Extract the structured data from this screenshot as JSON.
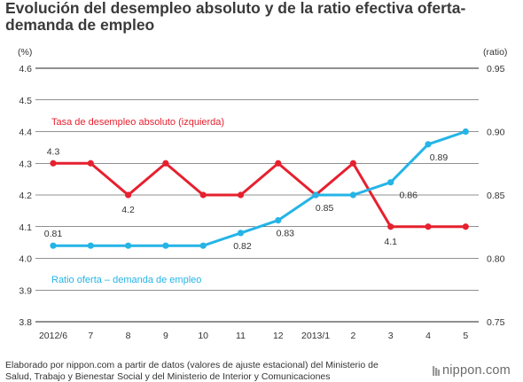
{
  "title": "Evolución del desempleo absoluto y de la ratio efectiva oferta-demanda de empleo",
  "source": "Elaborado por nippon.com a partir de datos (valores de ajuste estacional) del Ministerio de Salud, Trabajo y Bienestar Social y del Ministerio de Interior y Comunicaciones",
  "brand": "nippon.com",
  "colors": {
    "unemployment": "#e6202e",
    "ratio": "#25b4e6",
    "grid": "#222222",
    "text": "#333333"
  },
  "chart_data": {
    "type": "line",
    "categories": [
      "2012/6",
      "7",
      "8",
      "9",
      "10",
      "11",
      "12",
      "2013/1",
      "2",
      "3",
      "4",
      "5"
    ],
    "left_axis": {
      "label": "(%)",
      "ylim": [
        3.8,
        4.6
      ],
      "ticks": [
        "3.8",
        "3.9",
        "4.0",
        "4.1",
        "4.2",
        "4.3",
        "4.4",
        "4.5",
        "4.6"
      ]
    },
    "right_axis": {
      "label": "(ratio)",
      "ylim": [
        0.75,
        0.95
      ],
      "ticks": [
        "0.75",
        "0.80",
        "0.85",
        "0.90",
        "0.95"
      ]
    },
    "grid": true,
    "series": [
      {
        "name": "Tasa de desempleo absoluto (izquierda)",
        "axis": "left",
        "values": [
          4.3,
          4.3,
          4.2,
          4.3,
          4.2,
          4.2,
          4.3,
          4.2,
          4.3,
          4.1,
          4.1,
          4.1
        ],
        "data_labels": [
          {
            "index": 0,
            "text": "4.3"
          },
          {
            "index": 2,
            "text": "4.2"
          },
          {
            "index": 9,
            "text": "4.1"
          }
        ]
      },
      {
        "name": "Ratio oferta – demanda de empleo",
        "axis": "right",
        "values": [
          0.81,
          0.81,
          0.81,
          0.81,
          0.81,
          0.82,
          0.83,
          0.85,
          0.85,
          0.86,
          0.89,
          0.9
        ],
        "data_labels": [
          {
            "index": 0,
            "text": "0.81"
          },
          {
            "index": 5,
            "text": "0.82"
          },
          {
            "index": 6,
            "text": "0.83"
          },
          {
            "index": 7,
            "text": "0.85"
          },
          {
            "index": 9,
            "text": "0.86"
          },
          {
            "index": 10,
            "text": "0.89"
          }
        ]
      }
    ]
  }
}
